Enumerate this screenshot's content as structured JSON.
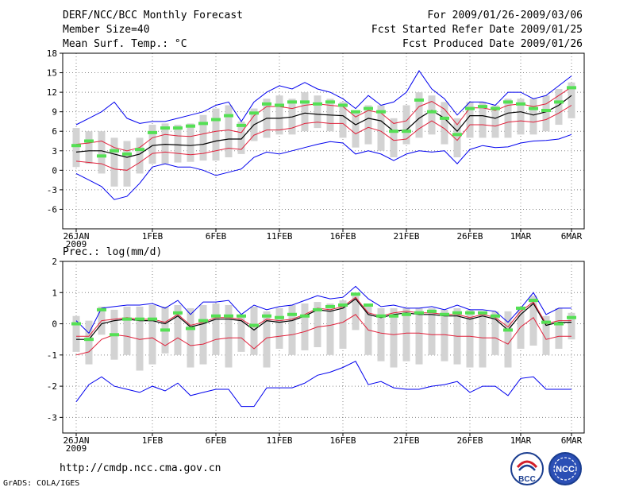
{
  "header": {
    "title": "DERF/NCC/BCC Monthly Forecast",
    "member_size": "Member Size=40",
    "period": "For 2009/01/26-2009/03/06",
    "fcst_started": "Fcst Started Refer Date 2009/01/25",
    "fcst_produced": "Fcst Produced Date 2009/01/26"
  },
  "footer": {
    "url": "http://cmdp.ncc.cma.gov.cn",
    "credit": "GrADS: COLA/IGES",
    "logo_bcc": "BCC",
    "logo_ncc": "NCC"
  },
  "colors": {
    "ensemble_mean": "#000000",
    "spread": "#e0203a",
    "extremes": "#0000ee",
    "box": "#d3d3d3",
    "observed_bar": "#54e054",
    "grid": "#888888"
  },
  "chart_data": [
    {
      "type": "line",
      "title": "Mean Surf. Temp.: °C",
      "ylim": [
        -9,
        18
      ],
      "yticks": [
        -6,
        -3,
        0,
        3,
        6,
        9,
        12,
        15,
        18
      ],
      "x_start_day": 0,
      "x_end_day": 39,
      "xtick_days": [
        0,
        6,
        11,
        16,
        21,
        26,
        31,
        35,
        39
      ],
      "xtick_labels": [
        "26JAN",
        "1FEB",
        "6FEB",
        "11FEB",
        "16FEB",
        "21FEB",
        "26FEB",
        "1MAR",
        "6MAR"
      ],
      "xtick_sublabel": "2009",
      "series": [
        {
          "name": "max",
          "values": [
            -0.5,
            -1.5,
            -2.5,
            -4.5,
            -4.0,
            -2.0,
            0.5,
            1.0,
            0.5,
            0.5,
            0.0,
            -0.8,
            -0.3,
            0.2,
            2.0,
            2.8,
            2.5,
            3.0,
            3.5,
            4.0,
            4.4,
            4.2,
            2.5,
            3.0,
            2.5,
            1.5,
            2.5,
            3.0,
            2.8,
            3.0,
            1.0,
            3.2,
            3.8,
            3.5,
            3.6,
            4.2,
            4.5,
            4.6,
            4.8,
            5.5
          ]
        },
        {
          "name": "max_upper",
          "values": [
            7.0,
            8.0,
            9.0,
            10.5,
            8.0,
            7.2,
            7.5,
            7.5,
            8.0,
            8.5,
            9.0,
            10.0,
            10.5,
            7.5,
            10.5,
            12.0,
            13.0,
            12.5,
            13.5,
            12.5,
            12.0,
            11.0,
            9.5,
            11.5,
            10.0,
            10.5,
            12.0,
            15.3,
            12.5,
            11.0,
            8.5,
            10.5,
            10.5,
            10.0,
            12.0,
            12.0,
            11.0,
            11.5,
            13.0,
            14.5
          ]
        },
        {
          "name": "mean",
          "values": [
            2.8,
            3.0,
            3.0,
            2.5,
            2.0,
            2.5,
            3.8,
            4.0,
            3.9,
            3.8,
            4.0,
            4.5,
            4.8,
            4.8,
            7.0,
            8.0,
            8.0,
            8.2,
            8.8,
            8.6,
            8.5,
            8.4,
            7.0,
            8.0,
            7.6,
            6.0,
            6.2,
            8.0,
            9.2,
            8.0,
            6.0,
            8.4,
            8.4,
            8.0,
            8.8,
            9.0,
            8.5,
            9.0,
            10.0,
            11.5
          ]
        },
        {
          "name": "upper",
          "values": [
            4.0,
            4.2,
            4.5,
            3.5,
            3.0,
            3.5,
            5.0,
            5.5,
            5.3,
            5.2,
            5.6,
            6.0,
            6.2,
            5.8,
            8.4,
            9.8,
            9.8,
            9.5,
            10.0,
            10.2,
            10.0,
            9.8,
            8.2,
            9.2,
            8.8,
            7.2,
            7.6,
            9.8,
            10.6,
            9.4,
            7.0,
            9.6,
            9.6,
            9.2,
            10.0,
            10.2,
            9.8,
            10.2,
            11.5,
            12.8
          ]
        },
        {
          "name": "lower",
          "values": [
            1.4,
            1.2,
            1.0,
            0.2,
            0.0,
            1.2,
            2.6,
            2.8,
            2.6,
            2.4,
            2.6,
            3.0,
            3.4,
            3.2,
            5.4,
            6.2,
            6.2,
            6.5,
            7.2,
            7.4,
            7.2,
            7.2,
            5.6,
            6.6,
            6.0,
            4.6,
            4.8,
            6.4,
            7.6,
            6.4,
            4.6,
            7.0,
            7.0,
            6.8,
            7.4,
            7.6,
            7.4,
            7.8,
            8.8,
            10.0
          ]
        },
        {
          "name": "obs",
          "values": [
            3.8,
            4.5,
            2.2,
            3.0,
            2.5,
            3.2,
            5.8,
            6.5,
            6.5,
            6.8,
            7.2,
            7.8,
            8.4,
            6.9,
            8.8,
            10.2,
            10.0,
            10.5,
            10.5,
            10.2,
            10.5,
            10.0,
            9.0,
            9.5,
            9.0,
            6.0,
            6.0,
            10.8,
            9.0,
            8.0,
            5.5,
            9.5,
            9.8,
            9.5,
            10.5,
            10.2,
            9.5,
            9.2,
            10.5,
            12.7
          ]
        }
      ],
      "box_low": [
        0.5,
        1.0,
        -0.5,
        -2.5,
        -2.5,
        -0.5,
        1.0,
        1.0,
        1.2,
        1.3,
        1.5,
        1.5,
        2.0,
        2.5,
        4.5,
        5.0,
        5.5,
        5.5,
        6.0,
        6.5,
        6.0,
        5.0,
        3.5,
        4.0,
        3.0,
        2.0,
        4.0,
        5.0,
        5.5,
        4.0,
        2.0,
        5.0,
        5.0,
        5.0,
        5.0,
        5.5,
        5.5,
        6.0,
        7.0,
        8.0
      ],
      "box_high": [
        6.5,
        6.0,
        6.0,
        5.0,
        4.5,
        5.0,
        7.0,
        7.2,
        7.0,
        7.2,
        8.5,
        9.5,
        10.0,
        7.5,
        9.5,
        11.0,
        11.5,
        11.0,
        12.0,
        11.5,
        11.0,
        10.5,
        9.0,
        10.0,
        10.0,
        8.0,
        10.0,
        12.0,
        11.5,
        10.5,
        8.0,
        10.5,
        10.5,
        10.0,
        11.0,
        11.0,
        11.0,
        11.5,
        12.5,
        13.5
      ]
    },
    {
      "type": "line",
      "title": "Prec.: log(mm/d)",
      "ylim": [
        -3.5,
        2
      ],
      "yticks": [
        -3,
        -2,
        -1,
        0,
        1,
        2
      ],
      "x_start_day": 0,
      "x_end_day": 39,
      "xtick_days": [
        0,
        6,
        11,
        16,
        21,
        26,
        31,
        35,
        39
      ],
      "xtick_labels": [
        "26JAN",
        "1FEB",
        "6FEB",
        "11FEB",
        "16FEB",
        "21FEB",
        "26FEB",
        "1MAR",
        "6MAR"
      ],
      "xtick_sublabel": "2009",
      "series": [
        {
          "name": "min",
          "values": [
            -2.5,
            -1.95,
            -1.7,
            -2.0,
            -2.1,
            -2.2,
            -2.0,
            -2.15,
            -1.9,
            -2.3,
            -2.2,
            -2.1,
            -2.1,
            -2.65,
            -2.65,
            -2.05,
            -2.05,
            -2.05,
            -1.9,
            -1.65,
            -1.55,
            -1.4,
            -1.2,
            -1.95,
            -1.85,
            -2.05,
            -2.1,
            -2.1,
            -2.0,
            -1.95,
            -1.85,
            -2.2,
            -2.0,
            -2.0,
            -2.3,
            -1.75,
            -1.7,
            -2.1,
            -2.1,
            -2.1
          ]
        },
        {
          "name": "max_upper",
          "values": [
            0.1,
            -0.3,
            0.5,
            0.55,
            0.6,
            0.6,
            0.65,
            0.5,
            0.75,
            0.3,
            0.7,
            0.7,
            0.75,
            0.3,
            0.6,
            0.45,
            0.55,
            0.6,
            0.75,
            0.9,
            0.8,
            0.85,
            1.2,
            0.8,
            0.55,
            0.6,
            0.5,
            0.5,
            0.55,
            0.45,
            0.6,
            0.45,
            0.45,
            0.4,
            0.05,
            0.5,
            1.0,
            0.3,
            0.5,
            0.5
          ]
        },
        {
          "name": "mean",
          "values": [
            -0.5,
            -0.5,
            0.0,
            0.1,
            0.15,
            0.1,
            0.1,
            0.0,
            0.25,
            -0.1,
            0.0,
            0.15,
            0.15,
            0.1,
            -0.2,
            0.1,
            0.05,
            0.1,
            0.25,
            0.45,
            0.4,
            0.5,
            0.8,
            0.3,
            0.2,
            0.3,
            0.35,
            0.3,
            0.3,
            0.25,
            0.25,
            0.15,
            0.25,
            0.15,
            -0.2,
            0.3,
            0.65,
            -0.05,
            0.05,
            0.05
          ]
        },
        {
          "name": "upper",
          "values": [
            -0.4,
            -0.4,
            0.1,
            0.15,
            0.2,
            0.15,
            0.15,
            0.05,
            0.3,
            -0.05,
            0.05,
            0.2,
            0.2,
            0.15,
            -0.1,
            0.15,
            0.1,
            0.15,
            0.3,
            0.5,
            0.45,
            0.55,
            0.85,
            0.35,
            0.25,
            0.35,
            0.4,
            0.35,
            0.35,
            0.3,
            0.3,
            0.2,
            0.3,
            0.2,
            -0.1,
            0.4,
            0.7,
            0.0,
            0.1,
            0.1
          ]
        },
        {
          "name": "lower",
          "values": [
            -1.0,
            -0.9,
            -0.5,
            -0.35,
            -0.4,
            -0.5,
            -0.45,
            -0.7,
            -0.45,
            -0.7,
            -0.65,
            -0.5,
            -0.45,
            -0.45,
            -0.8,
            -0.45,
            -0.4,
            -0.35,
            -0.25,
            -0.1,
            -0.05,
            0.05,
            0.3,
            -0.2,
            -0.3,
            -0.35,
            -0.3,
            -0.3,
            -0.35,
            -0.35,
            -0.4,
            -0.4,
            -0.45,
            -0.45,
            -0.65,
            -0.1,
            0.2,
            -0.5,
            -0.4,
            -0.4
          ]
        },
        {
          "name": "obs",
          "values": [
            0.0,
            -0.5,
            0.45,
            -0.35,
            0.15,
            0.15,
            0.15,
            -0.2,
            0.35,
            -0.15,
            0.1,
            0.25,
            0.25,
            0.25,
            -0.05,
            0.25,
            0.2,
            0.3,
            0.25,
            0.45,
            0.55,
            0.6,
            0.95,
            0.6,
            0.25,
            0.25,
            0.3,
            0.35,
            0.4,
            0.3,
            0.35,
            0.35,
            0.35,
            0.25,
            -0.2,
            0.5,
            0.75,
            0.05,
            0.0,
            0.2
          ]
        }
      ],
      "box_low": [
        -0.9,
        -1.3,
        -0.35,
        -1.15,
        -1.0,
        -1.5,
        -1.3,
        -0.95,
        -1.0,
        -1.4,
        -1.3,
        -1.0,
        -1.4,
        -0.9,
        -1.0,
        -1.4,
        -0.8,
        -1.0,
        -0.85,
        -0.75,
        -1.0,
        -0.8,
        -0.2,
        -1.0,
        -1.2,
        -1.4,
        -1.2,
        -1.3,
        -1.0,
        -1.2,
        -1.3,
        -1.4,
        -1.4,
        -1.0,
        -1.4,
        -0.8,
        -0.7,
        -1.0,
        -0.8,
        -0.5
      ],
      "box_high": [
        0.25,
        0.1,
        0.55,
        0.45,
        0.55,
        0.55,
        0.6,
        0.55,
        0.6,
        0.5,
        0.6,
        0.65,
        0.6,
        0.25,
        0.55,
        0.4,
        0.5,
        0.6,
        0.65,
        0.7,
        0.65,
        0.75,
        1.0,
        0.65,
        0.5,
        0.5,
        0.5,
        0.5,
        0.5,
        0.45,
        0.5,
        0.45,
        0.4,
        0.4,
        0.4,
        0.55,
        0.9,
        0.25,
        0.5,
        0.35
      ]
    }
  ]
}
